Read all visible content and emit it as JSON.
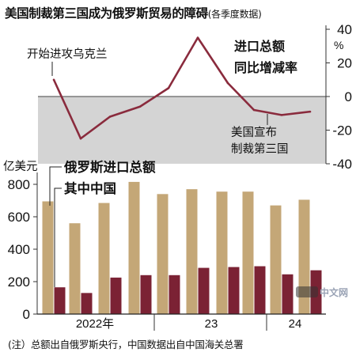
{
  "header": {
    "title": "美国制裁第三国成为俄罗斯贸易的障碍",
    "subtitle": "(各季度数据)"
  },
  "footnote": "(注）总额出自俄罗斯央行，中国数据出自中国海关总署",
  "watermark": {
    "text": "中文网"
  },
  "annotations": {
    "start_offensive": "开始进攻乌克兰",
    "sanctions_line1": "美国宣布",
    "sanctions_line2": "制裁第三国",
    "line_label_line1": "进口总额",
    "line_label_line2": "同比增减率",
    "bar_label_total": "俄罗斯进口总额",
    "bar_label_china": "其中中国"
  },
  "colors": {
    "total_bar": "#c4a777",
    "china_bar": "#7b2234",
    "line": "#8a2b3d",
    "negative_shade": "#d4d4d4"
  },
  "chart_data": [
    {
      "type": "line",
      "name": "import-yoy-change",
      "x": [
        "2022Q1",
        "2022Q2",
        "2022Q3",
        "2022Q4",
        "2023Q1",
        "2023Q2",
        "2023Q3",
        "2023Q4",
        "2024Q1",
        "2024Q2"
      ],
      "values": [
        10,
        -25,
        -12,
        -6,
        5,
        35,
        8,
        -8,
        -11,
        -9
      ],
      "ylim": [
        -40,
        40
      ],
      "ticks": [
        "40",
        "20",
        "0",
        "-20",
        "-40"
      ],
      "unit": "%",
      "shade_negative": true
    },
    {
      "type": "bar",
      "name": "import-values",
      "categories": [
        "2022Q1",
        "2022Q2",
        "2022Q3",
        "2022Q4",
        "2023Q1",
        "2023Q2",
        "2023Q3",
        "2023Q4",
        "2024Q1",
        "2024Q2"
      ],
      "series": [
        {
          "name": "俄罗斯进口总额",
          "values": [
            695,
            560,
            685,
            815,
            740,
            770,
            755,
            755,
            670,
            705
          ]
        },
        {
          "name": "其中中国",
          "values": [
            165,
            130,
            225,
            240,
            240,
            285,
            290,
            295,
            245,
            270
          ]
        }
      ],
      "ylabel": "亿美元",
      "ylim": [
        0,
        860
      ],
      "ticks": [
        "800",
        "600",
        "400",
        "200",
        "0"
      ],
      "year_labels": [
        "2022年",
        "23",
        "24"
      ]
    }
  ]
}
